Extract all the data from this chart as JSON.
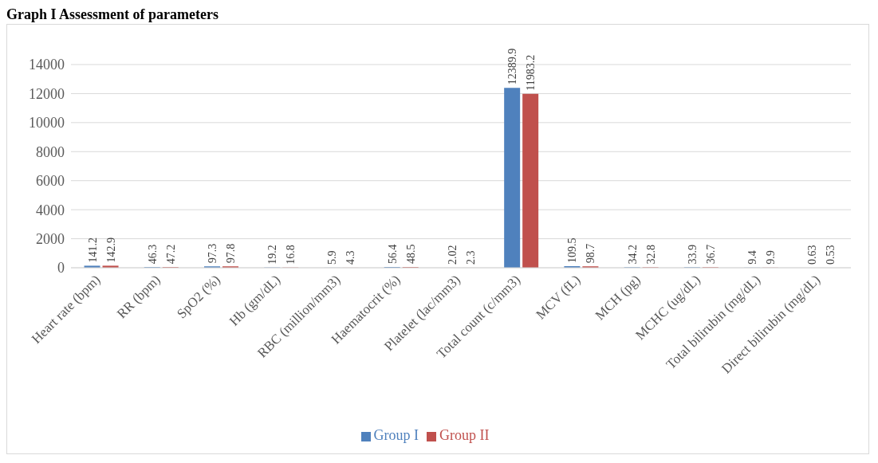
{
  "chart_data": {
    "type": "bar",
    "title": "Graph I Assessment of parameters",
    "categories": [
      "Heart rate (bpm)",
      "RR (bpm)",
      "SpO2 (%)",
      "Hb (gm/dL)",
      "RBC (million/mm3)",
      "Haematocrit (%)",
      "Platelet (lac/mm3)",
      "Total count (c/mm3)",
      "MCV (fL)",
      "MCH (pg)",
      "MCHC (ug/dL)",
      "Total bilirubin (mg/dL)",
      "Direct bilirubin (mg/dL)"
    ],
    "series": [
      {
        "name": "Group I",
        "color": "#4f81bd",
        "values": [
          141.2,
          46.3,
          97.3,
          19.2,
          5.9,
          56.4,
          2.02,
          12389.9,
          109.5,
          34.2,
          33.9,
          9.4,
          0.63
        ]
      },
      {
        "name": "Group II",
        "color": "#c0504d",
        "values": [
          142.9,
          47.2,
          97.8,
          16.8,
          4.3,
          48.5,
          2.3,
          11983.2,
          98.7,
          32.8,
          36.7,
          9.9,
          0.53
        ]
      }
    ],
    "ylim": [
      0,
      14000
    ],
    "yticks": [
      0,
      2000,
      4000,
      6000,
      8000,
      10000,
      12000,
      14000
    ],
    "grid": "y",
    "legend": "bottom",
    "data_labels": true
  }
}
